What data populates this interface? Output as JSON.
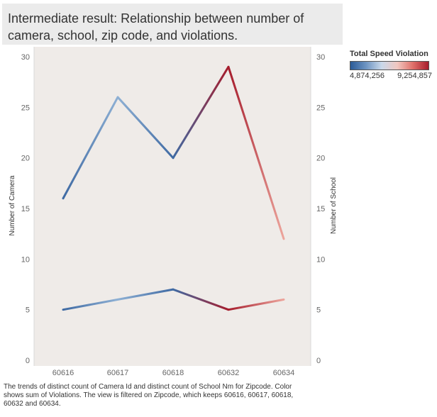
{
  "title": {
    "line1": "Intermediate result: Relationship between number of",
    "line2": "camera, school, zip code, and violations."
  },
  "legend": {
    "title": "Total Speed Violation",
    "min_label": "4,874,256",
    "max_label": "9,254,857",
    "colors": [
      "#2c5b97",
      "#6d94c2",
      "#c9d8ea",
      "#f1c7c0",
      "#e0706a",
      "#a61c2c"
    ]
  },
  "caption": "The trends of distinct count of Camera Id and distinct count of School Nm for Zipcode.  Color shows sum of Violations. The view is filtered on Zipcode, which keeps 60616, 60617, 60618, 60632 and 60634.",
  "chart_data": {
    "type": "line",
    "categories": [
      "60616",
      "60617",
      "60618",
      "60632",
      "60634"
    ],
    "series": [
      {
        "name": "Number of Camera",
        "values": [
          16,
          26,
          20,
          29,
          12
        ],
        "colors": [
          "#3f6aa3",
          "#8eb0d4",
          "#3f6aa3",
          "#a61c2c",
          "#eda59c"
        ]
      },
      {
        "name": "Number of School",
        "values": [
          5,
          6,
          7,
          5,
          6
        ],
        "colors": [
          "#3f6aa3",
          "#8eb0d4",
          "#3f6aa3",
          "#a61c2c",
          "#eda59c"
        ]
      }
    ],
    "ylabel_left": "Number of Camera",
    "ylabel_right": "Number of School",
    "ylim": [
      0,
      30
    ],
    "yticks": [
      "0",
      "5",
      "10",
      "15",
      "20",
      "25",
      "30"
    ],
    "grid": false,
    "background": "#efebe8"
  }
}
